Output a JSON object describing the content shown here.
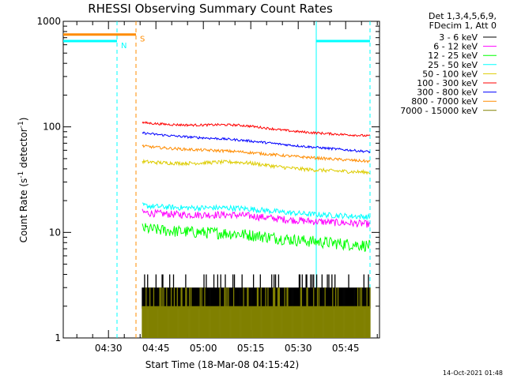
{
  "chart_data": {
    "type": "line",
    "title": "RHESSI Observing Summary Count Rates",
    "xlabel": "Start Time (18-Mar-08 04:15:42)",
    "ylabel_parts": [
      "Count Rate (s",
      "-1",
      " detector",
      "-1",
      ")"
    ],
    "y_scale": "log",
    "ylim": [
      1,
      1000
    ],
    "y_ticks": [
      {
        "value": 1,
        "label": "1"
      },
      {
        "value": 10,
        "label": "10"
      },
      {
        "value": 100,
        "label": "100"
      },
      {
        "value": 1000,
        "label": "1000"
      }
    ],
    "x_range_minutes": [
      0,
      100
    ],
    "x_ticks": [
      {
        "minutes": 14.3,
        "label": "04:30"
      },
      {
        "minutes": 29.3,
        "label": "04:45"
      },
      {
        "minutes": 44.3,
        "label": "05:00"
      },
      {
        "minutes": 59.3,
        "label": "05:15"
      },
      {
        "minutes": 74.3,
        "label": "05:30"
      },
      {
        "minutes": 89.3,
        "label": "05:45"
      }
    ],
    "legend_header": [
      "Det 1,3,4,5,6,9,",
      "FDecim 1, Att 0"
    ],
    "series": [
      {
        "name": "3 - 6 keV",
        "color": "#000000",
        "base": 3.0,
        "hi": 3.0,
        "lo": 1.9,
        "hump": 0.0,
        "noise": 0.0,
        "quantized": true
      },
      {
        "name": "6 - 12 keV",
        "color": "#ff00ff",
        "base": 13.0,
        "hi": 15.5,
        "lo": 12.0,
        "hump": 0.06,
        "noise": 0.08
      },
      {
        "name": "12 - 25 keV",
        "color": "#00ff00",
        "base": 8.5,
        "hi": 11.0,
        "lo": 7.5,
        "hump": 0.05,
        "noise": 0.13
      },
      {
        "name": "25 - 50 keV",
        "color": "#00ffff",
        "base": 15.0,
        "hi": 18.0,
        "lo": 14.0,
        "hump": 0.06,
        "noise": 0.06
      },
      {
        "name": "50 - 100 keV",
        "color": "#ddcc00",
        "base": 39.0,
        "hi": 47.0,
        "lo": 37.0,
        "hump": 0.1,
        "noise": 0.04
      },
      {
        "name": "100 - 300 keV",
        "color": "#ff0000",
        "base": 95.0,
        "hi": 110.0,
        "lo": 82.0,
        "hump": 0.08,
        "noise": 0.025
      },
      {
        "name": "300 - 800 keV",
        "color": "#0000ff",
        "base": 73.0,
        "hi": 88.0,
        "lo": 58.0,
        "hump": 0.03,
        "noise": 0.025
      },
      {
        "name": "800 - 7000 keV",
        "color": "#ff8c00",
        "base": 57.0,
        "hi": 66.0,
        "lo": 47.0,
        "hump": 0.03,
        "noise": 0.03
      },
      {
        "name": "7000 - 15000 keV",
        "color": "#808000",
        "base": 2.0,
        "hi": 2.0,
        "lo": 1.0,
        "hump": 0.0,
        "noise": 0.0,
        "quantized": true
      }
    ],
    "data_start_minutes": 25.0,
    "data_end_minutes": 97.0,
    "annotations": [
      {
        "label": "N",
        "color": "#00ffff",
        "kind": "night",
        "x0_minutes": 0,
        "x1_minutes": 17.0,
        "value": 650
      },
      {
        "label": "S",
        "color": "#ff8c00",
        "kind": "saa",
        "x0_minutes": 0,
        "x1_minutes": 23.0,
        "value": 750
      },
      {
        "label": "",
        "color": "#00ffff",
        "kind": "night",
        "x0_minutes": 80.0,
        "x1_minutes": 97.0,
        "value": 650
      }
    ],
    "timestamp": "14-Oct-2021 01:48"
  }
}
